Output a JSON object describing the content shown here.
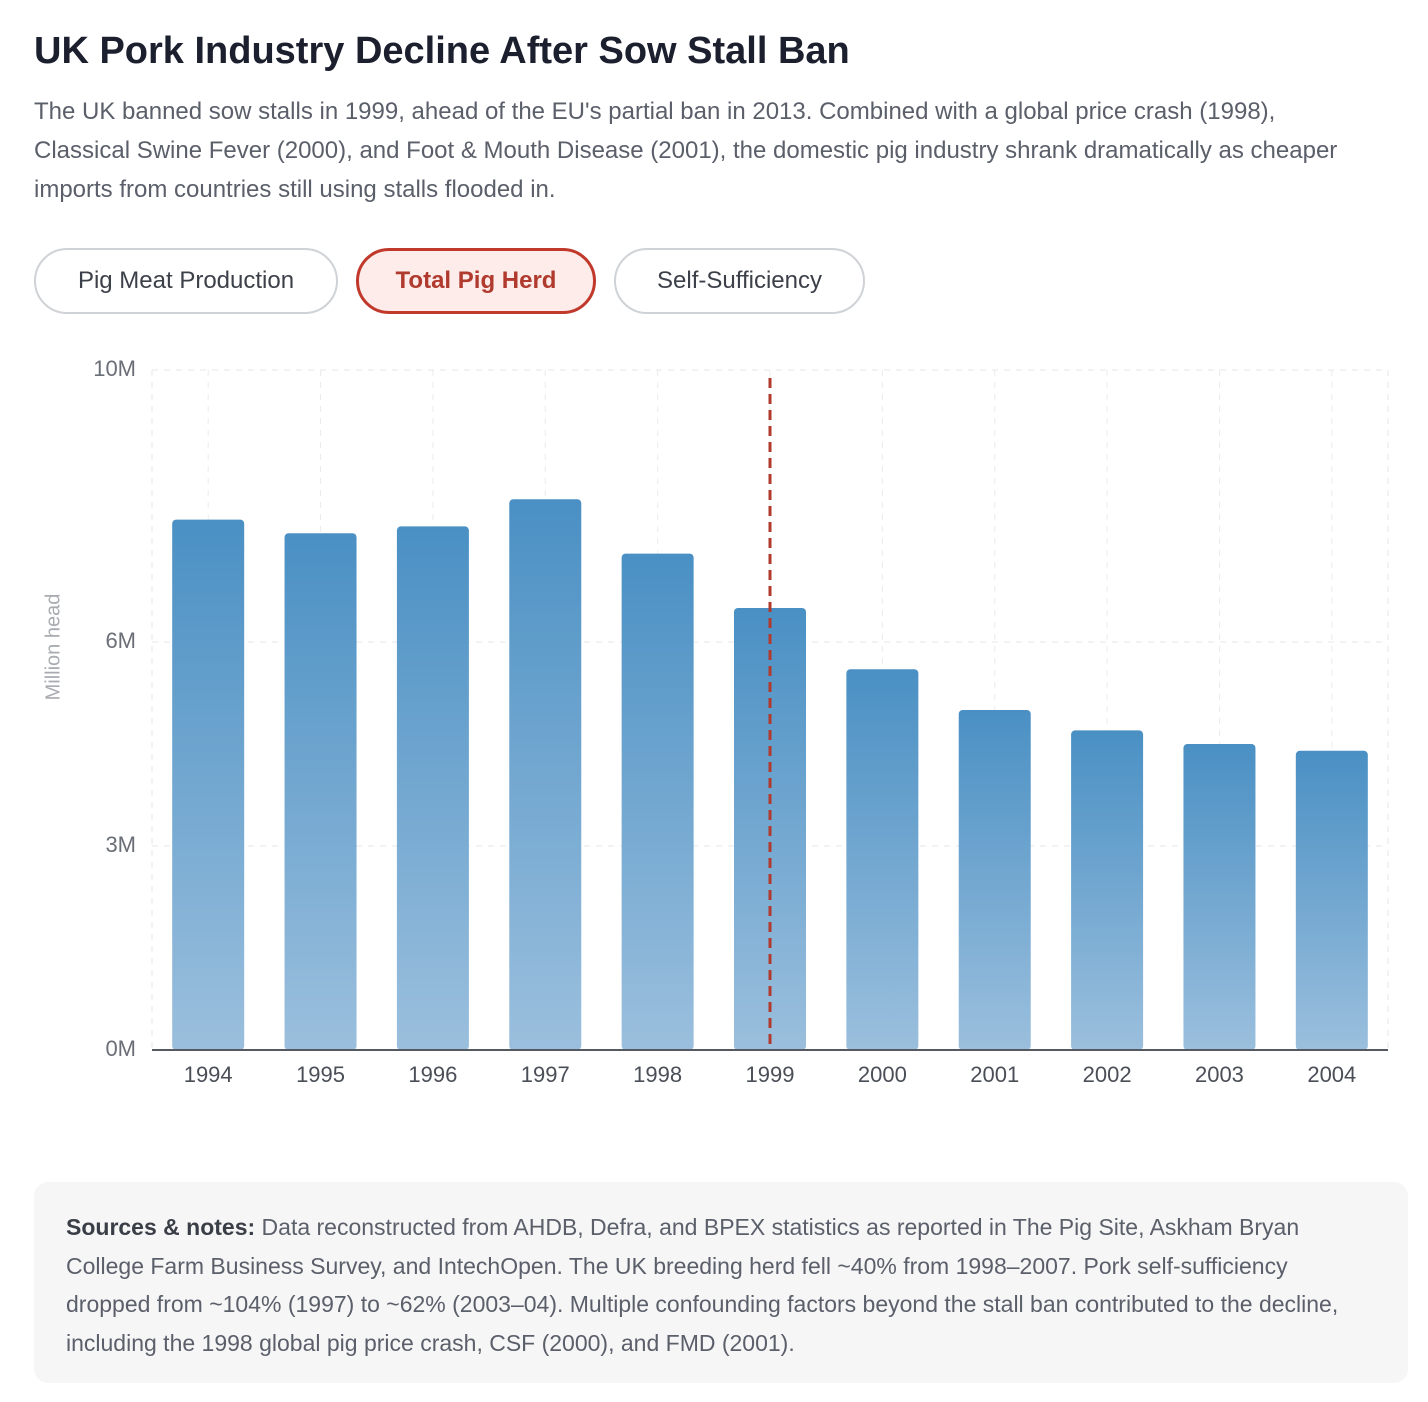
{
  "title": "UK Pork Industry Decline After Sow Stall Ban",
  "description": "The UK banned sow stalls in 1999, ahead of the EU's partial ban in 2013. Combined with a global price crash (1998), Classical Swine Fever (2000), and Foot & Mouth Disease (2001), the domestic pig industry shrank dramatically as cheaper imports from countries still using stalls flooded in.",
  "tabs": [
    "Pig Meat Production",
    "Total Pig Herd",
    "Self-Sufficiency"
  ],
  "notes_label": "Sources & notes:",
  "notes_text": "Data reconstructed from AHDB, Defra, and BPEX statistics as reported in The Pig Site, Askham Bryan College Farm Business Survey, and IntechOpen. The UK breeding herd fell ~40% from 1998–2007. Pork self-sufficiency dropped from ~104% (1997) to ~62% (2003–04). Multiple confounding factors beyond the stall ban contributed to the decline, including the 1998 global pig price crash, CSF (2000), and FMD (2001).",
  "chart_data": {
    "type": "bar",
    "y_label": "Million head",
    "categories": [
      "1994",
      "1995",
      "1996",
      "1997",
      "1998",
      "1999",
      "2000",
      "2001",
      "2002",
      "2003",
      "2004"
    ],
    "values": [
      7.8,
      7.6,
      7.7,
      8.1,
      7.3,
      6.5,
      5.6,
      5.0,
      4.7,
      4.5,
      4.4
    ],
    "color": "#4a90c4",
    "ylim": [
      0,
      10
    ],
    "yticks": [
      {
        "value": 0,
        "label": "0M"
      },
      {
        "value": 3,
        "label": "3M"
      },
      {
        "value": 6,
        "label": "6M"
      },
      {
        "value": 10,
        "label": "10M"
      }
    ],
    "grid": true,
    "reference_line": {
      "category": "1999",
      "color": "#b03a2e"
    }
  }
}
